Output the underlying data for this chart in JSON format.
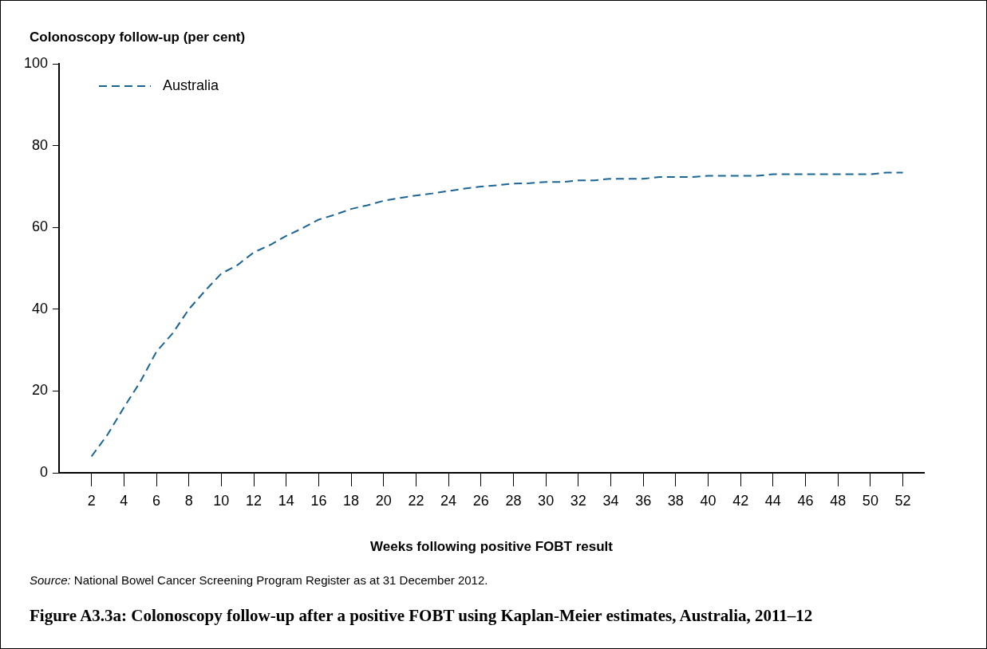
{
  "chart_data": {
    "type": "line",
    "title": "Figure A3.3a: Colonoscopy follow-up after a positive FOBT using Kaplan-Meier estimates, Australia, 2011–12",
    "ylabel": "Colonoscopy follow-up (per cent)",
    "xlabel": "Weeks following positive FOBT result",
    "annotations": [
      "Source: National Bowel Cancer Screening Program Register as at 31 December 2012."
    ],
    "x": [
      2,
      3,
      4,
      5,
      6,
      7,
      8,
      9,
      10,
      11,
      12,
      13,
      14,
      15,
      16,
      17,
      18,
      19,
      20,
      21,
      22,
      23,
      24,
      25,
      26,
      27,
      28,
      29,
      30,
      31,
      32,
      33,
      34,
      35,
      36,
      37,
      38,
      39,
      40,
      41,
      42,
      43,
      44,
      45,
      46,
      47,
      48,
      49,
      50,
      51,
      52
    ],
    "series": [
      {
        "name": "Australia",
        "color": "#1a6496",
        "values": [
          4.0,
          9.4,
          16.0,
          22.2,
          29.6,
          34.1,
          40.0,
          44.5,
          48.7,
          50.8,
          53.9,
          55.7,
          57.9,
          59.8,
          61.9,
          63.1,
          64.5,
          65.4,
          66.5,
          67.2,
          67.8,
          68.3,
          68.9,
          69.5,
          70.0,
          70.3,
          70.7,
          70.8,
          71.1,
          71.1,
          71.5,
          71.5,
          71.9,
          71.9,
          71.9,
          72.3,
          72.3,
          72.3,
          72.6,
          72.6,
          72.6,
          72.6,
          73.0,
          73.0,
          73.0,
          73.0,
          73.0,
          73.0,
          73.0,
          73.4,
          73.4
        ]
      }
    ],
    "xlim": [
      0,
      53.3
    ],
    "xticks": [
      2,
      4,
      6,
      8,
      10,
      12,
      14,
      16,
      18,
      20,
      22,
      24,
      26,
      28,
      30,
      32,
      34,
      36,
      38,
      40,
      42,
      44,
      46,
      48,
      50,
      52
    ],
    "ylim": [
      0,
      100
    ],
    "yticks": [
      0,
      20,
      40,
      60,
      80,
      100
    ],
    "grid": false,
    "legend": "top left",
    "marker": "none",
    "line_style": "dashed"
  }
}
